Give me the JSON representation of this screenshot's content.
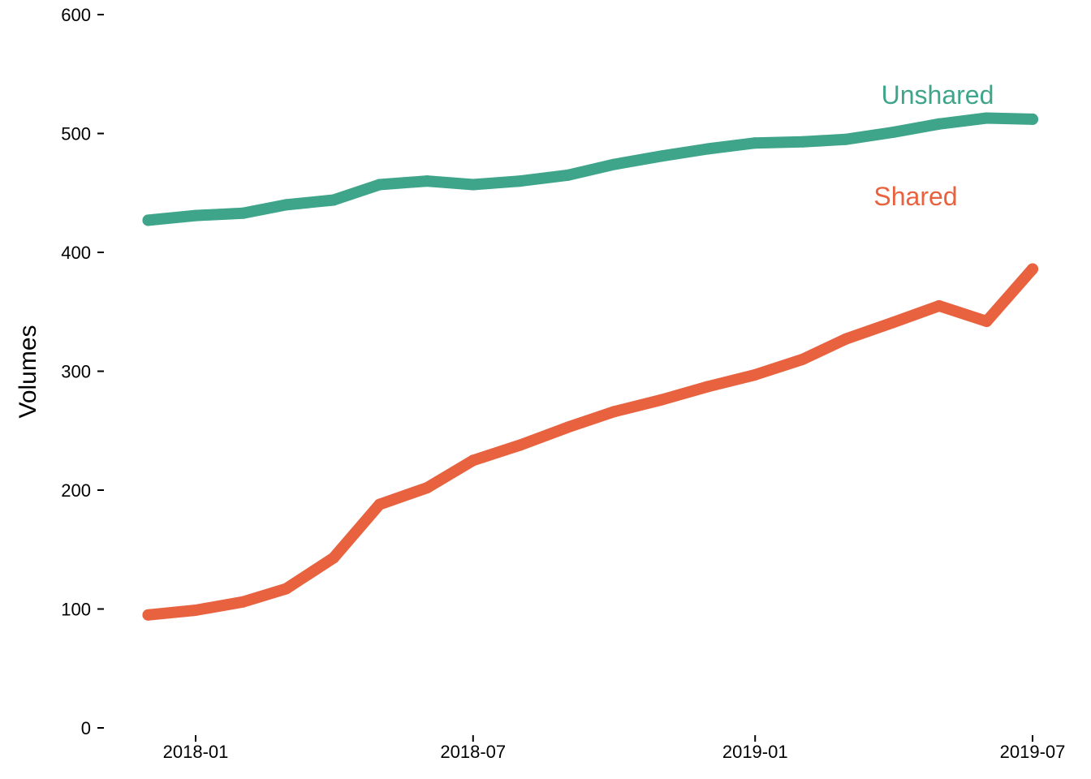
{
  "chart_data": {
    "type": "line",
    "xlabel": "",
    "ylabel": "Volumes",
    "ylim": [
      0,
      600
    ],
    "y_ticks": [
      0,
      100,
      200,
      300,
      400,
      500,
      600
    ],
    "y_tick_labels": [
      "0",
      "100",
      "200",
      "300",
      "400",
      "500",
      "600"
    ],
    "x_ticks": [
      "2018-01-01",
      "2018-07-01",
      "2019-01-01",
      "2019-07-01"
    ],
    "x_tick_labels": [
      "2018-01",
      "2018-07",
      "2019-01",
      "2019-07"
    ],
    "grid": false,
    "legend": "none",
    "x": [
      "2017-12-01",
      "2018-01-01",
      "2018-02-01",
      "2018-03-01",
      "2018-04-01",
      "2018-05-01",
      "2018-06-01",
      "2018-07-01",
      "2018-08-01",
      "2018-09-01",
      "2018-10-01",
      "2018-11-01",
      "2018-12-01",
      "2019-01-01",
      "2019-02-01",
      "2019-03-01",
      "2019-04-01",
      "2019-05-01",
      "2019-06-01",
      "2019-07-01"
    ],
    "series": [
      {
        "name": "Unshared",
        "color": "#3fa58a",
        "values": [
          427,
          431,
          433,
          440,
          444,
          457,
          460,
          457,
          460,
          465,
          474,
          481,
          487,
          492,
          493,
          495,
          501,
          508,
          513,
          512
        ]
      },
      {
        "name": "Shared",
        "color": "#e8623f",
        "values": [
          95,
          99,
          106,
          117,
          143,
          188,
          202,
          225,
          238,
          253,
          266,
          276,
          287,
          297,
          310,
          327,
          341,
          355,
          342,
          386
        ]
      }
    ],
    "label_positions": "Unshared above line near right end; Shared below Unshared label"
  }
}
